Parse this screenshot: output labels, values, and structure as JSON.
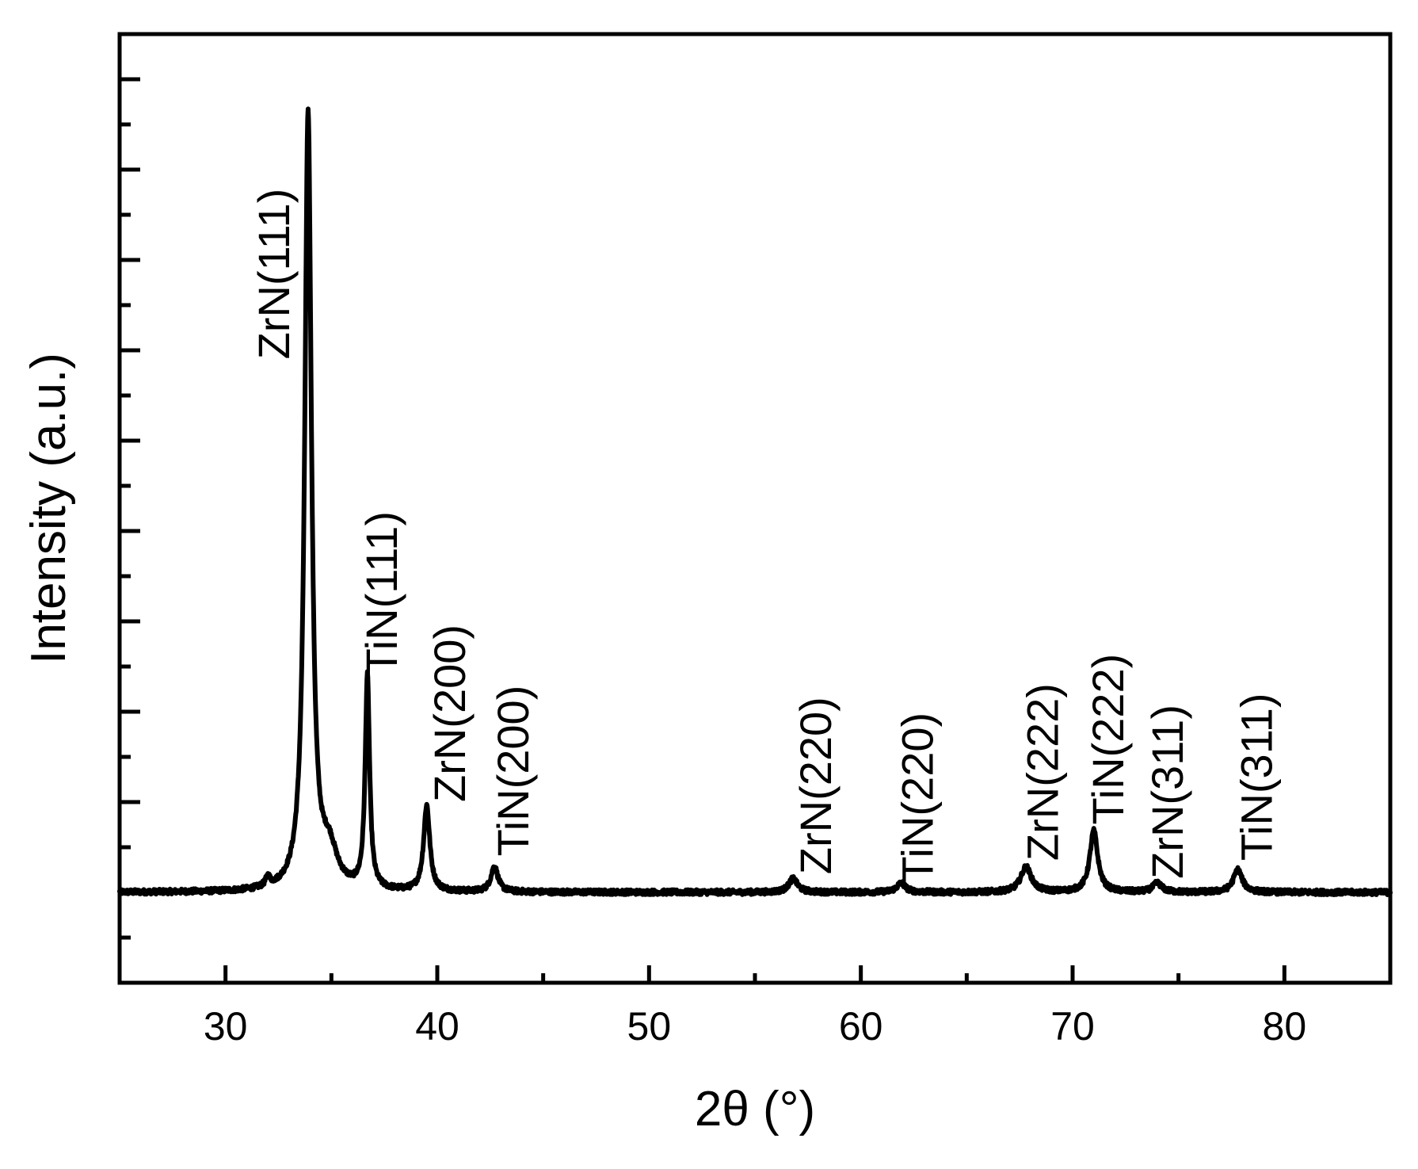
{
  "chart_data": {
    "type": "line",
    "title": "",
    "xlabel": "2θ (°)",
    "ylabel": "Intensity (a.u.)",
    "xlim": [
      25,
      85
    ],
    "ylim": [
      -10,
      95
    ],
    "x_ticks": [
      30,
      40,
      50,
      60,
      70,
      80
    ],
    "x_minor_ticks": [
      35,
      45,
      55,
      65,
      75
    ],
    "y_tick_labels": "none",
    "grid": false,
    "legend": "none",
    "line_color": "#000000",
    "baseline": 0,
    "series": [
      {
        "peaks": [
          {
            "x": 32.0,
            "height": 1.0,
            "width": 0.25
          },
          {
            "x": 33.9,
            "height": 86.0,
            "width": 0.38
          },
          {
            "x": 34.9,
            "height": 4.0,
            "width": 0.9
          },
          {
            "x": 36.7,
            "height": 23.5,
            "width": 0.25
          },
          {
            "x": 39.5,
            "height": 9.5,
            "width": 0.35
          },
          {
            "x": 42.7,
            "height": 2.8,
            "width": 0.4
          },
          {
            "x": 56.8,
            "height": 1.5,
            "width": 0.5
          },
          {
            "x": 61.9,
            "height": 1.0,
            "width": 0.5
          },
          {
            "x": 67.8,
            "height": 2.8,
            "width": 0.6
          },
          {
            "x": 71.0,
            "height": 6.8,
            "width": 0.45
          },
          {
            "x": 74.0,
            "height": 1.0,
            "width": 0.5
          },
          {
            "x": 77.8,
            "height": 2.5,
            "width": 0.5
          }
        ]
      }
    ],
    "annotations": [
      {
        "text": "ZrN(111)",
        "x": 33.0,
        "y": 59
      },
      {
        "text": "TiN(111)",
        "x": 38.1,
        "y": 24
      },
      {
        "text": "ZrN(200)",
        "x": 41.3,
        "y": 10
      },
      {
        "text": "TiN(200)",
        "x": 44.3,
        "y": 4
      },
      {
        "text": "ZrN(220)",
        "x": 58.6,
        "y": 2
      },
      {
        "text": "TiN(220)",
        "x": 63.4,
        "y": 1
      },
      {
        "text": "ZrN(222)",
        "x": 69.3,
        "y": 3.5
      },
      {
        "text": "TiN(222)",
        "x": 72.4,
        "y": 7.5
      },
      {
        "text": "ZrN(311)",
        "x": 75.2,
        "y": 1.5
      },
      {
        "text": "TiN(311)",
        "x": 79.4,
        "y": 3.5
      }
    ]
  }
}
